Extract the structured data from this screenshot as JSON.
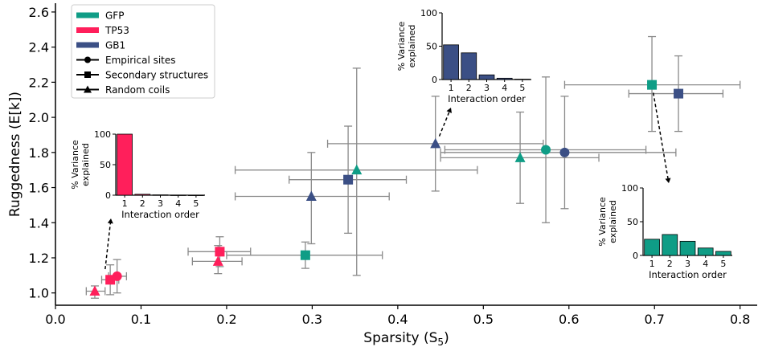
{
  "chart_data": {
    "type": "scatter",
    "xlabel": "Sparsity (S",
    "xlabel_sub": "5",
    "xlabel_suffix": ")",
    "ylabel": "Ruggedness (E[k])",
    "xlim": [
      0.0,
      0.82
    ],
    "ylim": [
      0.93,
      2.65
    ],
    "x_ticks": [
      0.0,
      0.1,
      0.2,
      0.3,
      0.4,
      0.5,
      0.6,
      0.7,
      0.8
    ],
    "x_tick_labels": [
      "0.0",
      "0.1",
      "0.2",
      "0.3",
      "0.4",
      "0.5",
      "0.6",
      "0.7",
      "0.8"
    ],
    "y_ticks": [
      1.0,
      1.2,
      1.4,
      1.6,
      1.8,
      2.0,
      2.2,
      2.4,
      2.6
    ],
    "y_tick_labels": [
      "1.0",
      "1.2",
      "1.4",
      "1.6",
      "1.8",
      "2.0",
      "2.2",
      "2.4",
      "2.6"
    ],
    "grid": false,
    "legend_position": "top-left",
    "legend": {
      "colors": [
        {
          "label": "GFP",
          "color": "#0f9d86"
        },
        {
          "label": "TP53",
          "color": "#ff1f5b"
        },
        {
          "label": "GB1",
          "color": "#3b4f85"
        }
      ],
      "markers": [
        {
          "label": "Empirical sites",
          "marker": "circle"
        },
        {
          "label": "Secondary structures",
          "marker": "square"
        },
        {
          "label": "Random coils",
          "marker": "triangle"
        }
      ]
    },
    "series": [
      {
        "name": "GFP",
        "color": "#0f9d86",
        "points": [
          {
            "marker": "circle",
            "x": 0.573,
            "y": 1.815,
            "xerr": [
              0.455,
              0.69
            ],
            "yerr": [
              1.4,
              2.23
            ]
          },
          {
            "marker": "square",
            "x": 0.697,
            "y": 2.185,
            "xerr": [
              0.595,
              0.8
            ],
            "yerr": [
              1.92,
              2.46
            ]
          },
          {
            "marker": "square",
            "x": 0.292,
            "y": 1.215,
            "xerr": [
              0.2,
              0.382
            ],
            "yerr": [
              1.14,
              1.29
            ]
          },
          {
            "marker": "triangle",
            "x": 0.543,
            "y": 1.77,
            "xerr": [
              0.45,
              0.635
            ],
            "yerr": [
              1.51,
              2.03
            ]
          },
          {
            "marker": "triangle",
            "x": 0.352,
            "y": 1.7,
            "xerr": [
              0.21,
              0.493
            ],
            "yerr": [
              1.1,
              2.28
            ]
          }
        ]
      },
      {
        "name": "TP53",
        "color": "#ff1f5b",
        "points": [
          {
            "marker": "circle",
            "x": 0.072,
            "y": 1.095,
            "xerr": [
              0.062,
              0.083
            ],
            "yerr": [
              1.0,
              1.19
            ]
          },
          {
            "marker": "square",
            "x": 0.064,
            "y": 1.075,
            "xerr": [
              0.054,
              0.074
            ],
            "yerr": [
              0.99,
              1.16
            ]
          },
          {
            "marker": "square",
            "x": 0.192,
            "y": 1.235,
            "xerr": [
              0.155,
              0.228
            ],
            "yerr": [
              1.15,
              1.32
            ]
          },
          {
            "marker": "triangle",
            "x": 0.046,
            "y": 1.01,
            "xerr": [
              0.036,
              0.058
            ],
            "yerr": [
              0.97,
              1.04
            ]
          },
          {
            "marker": "triangle",
            "x": 0.19,
            "y": 1.18,
            "xerr": [
              0.16,
              0.218
            ],
            "yerr": [
              1.11,
              1.27
            ]
          }
        ]
      },
      {
        "name": "GB1",
        "color": "#3b4f85",
        "points": [
          {
            "marker": "circle",
            "x": 0.595,
            "y": 1.8,
            "xerr": [
              0.45,
              0.725
            ],
            "yerr": [
              1.48,
              2.12
            ]
          },
          {
            "marker": "square",
            "x": 0.728,
            "y": 2.135,
            "xerr": [
              0.67,
              0.78
            ],
            "yerr": [
              1.92,
              2.35
            ]
          },
          {
            "marker": "square",
            "x": 0.342,
            "y": 1.645,
            "xerr": [
              0.273,
              0.41
            ],
            "yerr": [
              1.34,
              1.95
            ]
          },
          {
            "marker": "triangle",
            "x": 0.444,
            "y": 1.85,
            "xerr": [
              0.318,
              0.57
            ],
            "yerr": [
              1.58,
              2.12
            ]
          },
          {
            "marker": "triangle",
            "x": 0.299,
            "y": 1.55,
            "xerr": [
              0.21,
              0.39
            ],
            "yerr": [
              1.28,
              1.8
            ]
          }
        ]
      }
    ],
    "insets": [
      {
        "series": "TP53",
        "color": "#ff1f5b",
        "ylabel": "% Variance\nexplained",
        "xlabel": "Interaction order",
        "categories": [
          "1",
          "2",
          "3",
          "4",
          "5"
        ],
        "values": [
          100,
          1.5,
          0.5,
          0.2,
          0.1
        ],
        "y_ticks": [
          0,
          50,
          100
        ]
      },
      {
        "series": "GB1",
        "color": "#3b4f85",
        "ylabel": "% Variance\nexplained",
        "xlabel": "Interaction order",
        "categories": [
          "1",
          "2",
          "3",
          "4",
          "5"
        ],
        "values": [
          52,
          40,
          7,
          2,
          0.5
        ],
        "y_ticks": [
          0,
          50,
          100
        ]
      },
      {
        "series": "GFP",
        "color": "#0f9d86",
        "ylabel": "% Variance\nexplained",
        "xlabel": "Interaction order",
        "categories": [
          "1",
          "2",
          "3",
          "4",
          "5"
        ],
        "values": [
          24,
          31,
          21,
          11,
          6
        ],
        "y_ticks": [
          0,
          50,
          100
        ]
      }
    ]
  }
}
